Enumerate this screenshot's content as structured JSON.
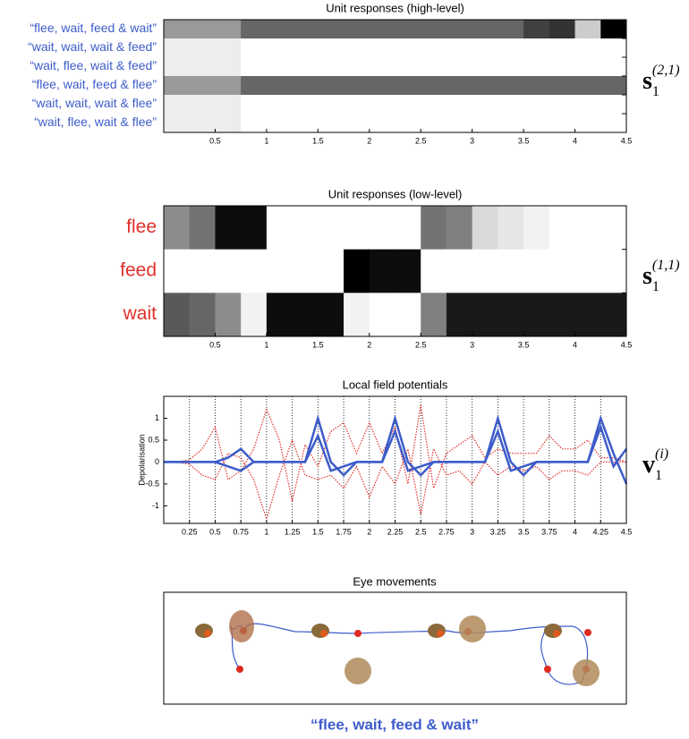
{
  "panels": [
    {
      "type": "heatmap",
      "title": "Unit responses (high-level)",
      "rows": [
        "“flee, wait, feed & wait”",
        "“wait, wait, wait & feed”",
        "“wait, flee, wait & feed”",
        "“flee, wait, feed & flee”",
        "“wait, wait, wait & flee”",
        "“wait, flee, wait & flee”"
      ],
      "label_color": "#3d5cc9",
      "x_edges": [
        0,
        0.25,
        0.5,
        0.75,
        1,
        1.25,
        1.5,
        1.75,
        2,
        2.25,
        2.5,
        2.75,
        3,
        3.25,
        3.5,
        3.75,
        4,
        4.25,
        4.5
      ],
      "values": [
        [
          0.4,
          0.4,
          0.4,
          0.6,
          0.6,
          0.6,
          0.6,
          0.6,
          0.6,
          0.6,
          0.6,
          0.6,
          0.6,
          0.6,
          0.75,
          0.8,
          0.2,
          1
        ],
        [
          0.07,
          0.07,
          0.07,
          0,
          0,
          0,
          0,
          0,
          0,
          0,
          0,
          0,
          0,
          0,
          0,
          0,
          0,
          0
        ],
        [
          0.07,
          0.07,
          0.07,
          0,
          0,
          0,
          0,
          0,
          0,
          0,
          0,
          0,
          0,
          0,
          0,
          0,
          0,
          0
        ],
        [
          0.4,
          0.4,
          0.4,
          0.6,
          0.6,
          0.6,
          0.6,
          0.6,
          0.6,
          0.6,
          0.6,
          0.6,
          0.6,
          0.6,
          0.6,
          0.6,
          0.6,
          0.6
        ],
        [
          0.07,
          0.07,
          0.07,
          0,
          0,
          0,
          0,
          0,
          0,
          0,
          0,
          0,
          0,
          0,
          0,
          0,
          0,
          0
        ],
        [
          0.07,
          0.07,
          0.07,
          0,
          0,
          0,
          0,
          0,
          0,
          0,
          0,
          0,
          0,
          0,
          0,
          0,
          0,
          0
        ]
      ],
      "xlim": [
        0,
        4.5
      ],
      "xticks": [
        0.5,
        1,
        1.5,
        2,
        2.5,
        3,
        3.5,
        4,
        4.5
      ],
      "label": {
        "symbol": "s",
        "sub": "1",
        "sup": "(2,1)"
      }
    },
    {
      "type": "heatmap",
      "title": "Unit responses (low-level)",
      "rows": [
        "flee",
        "feed",
        "wait"
      ],
      "label_color": "#e0302a",
      "x_edges": [
        0,
        0.25,
        0.5,
        0.75,
        1,
        1.25,
        1.5,
        1.75,
        2,
        2.25,
        2.5,
        2.75,
        3,
        3.25,
        3.5,
        3.75,
        4,
        4.25,
        4.5
      ],
      "values": [
        [
          0.45,
          0.55,
          0.95,
          0.95,
          0,
          0,
          0,
          0,
          0,
          0,
          0.55,
          0.5,
          0.15,
          0.1,
          0.05,
          0,
          0,
          0
        ],
        [
          0,
          0,
          0,
          0,
          0,
          0,
          0,
          1,
          0.95,
          0.95,
          0,
          0,
          0,
          0,
          0,
          0,
          0,
          0
        ],
        [
          0.65,
          0.6,
          0.45,
          0.05,
          0.95,
          0.95,
          0.95,
          0.05,
          0,
          0,
          0.5,
          0.9,
          0.9,
          0.9,
          0.9,
          0.9,
          0.9,
          0.9
        ]
      ],
      "xlim": [
        0,
        4.5
      ],
      "xticks": [
        0.5,
        1,
        1.5,
        2,
        2.5,
        3,
        3.5,
        4,
        4.5
      ],
      "label": {
        "symbol": "s",
        "sub": "1",
        "sup": "(1,1)"
      }
    },
    {
      "type": "line",
      "title": "Local field potentials",
      "y_label": "Depolarisation",
      "x": [
        0,
        0.125,
        0.25,
        0.375,
        0.5,
        0.625,
        0.75,
        0.875,
        1,
        1.125,
        1.25,
        1.375,
        1.5,
        1.625,
        1.75,
        1.875,
        2,
        2.125,
        2.25,
        2.375,
        2.5,
        2.625,
        2.75,
        2.875,
        3,
        3.125,
        3.25,
        3.375,
        3.5,
        3.625,
        3.75,
        3.875,
        4,
        4.125,
        4.25,
        4.375,
        4.5
      ],
      "series": [
        {
          "color": "#e0302a",
          "style": "dotted",
          "values": [
            0,
            0,
            0.05,
            0.3,
            0.8,
            -0.4,
            -0.2,
            0.3,
            1.2,
            0.5,
            -0.9,
            0.4,
            -0.1,
            0.7,
            0.9,
            0.2,
            0.9,
            0.2,
            0.8,
            -0.5,
            1.3,
            -0.6,
            0.2,
            0.4,
            0.6,
            0.1,
            0.3,
            0.2,
            0.2,
            0.2,
            0.6,
            0.3,
            0.3,
            0.5,
            0.1,
            0.1,
            0
          ]
        },
        {
          "color": "#e0302a",
          "style": "dotted",
          "values": [
            0,
            0,
            -0.05,
            -0.3,
            -0.4,
            0.2,
            0.1,
            -0.4,
            -1.3,
            -0.3,
            0.5,
            -0.3,
            -0.4,
            -0.3,
            -0.6,
            -0.1,
            -0.8,
            -0.1,
            -0.5,
            0.3,
            -1.2,
            0.3,
            -0.3,
            -0.2,
            -0.5,
            0,
            -0.3,
            -0.1,
            -0.2,
            -0.1,
            -0.4,
            -0.2,
            -0.2,
            -0.3,
            0,
            0,
            0
          ]
        },
        {
          "color": "#3d5cc9",
          "style": "solid",
          "values": [
            0,
            0,
            0,
            0,
            0,
            0.1,
            0.3,
            0,
            0,
            0,
            0,
            0,
            1,
            0,
            -0.3,
            0,
            0,
            0,
            1,
            0,
            -0.3,
            0,
            0,
            0,
            0,
            0,
            1,
            0,
            -0.3,
            0,
            0,
            0,
            0,
            0,
            1,
            0.2,
            -0.5
          ]
        },
        {
          "color": "#3d5cc9",
          "style": "solid",
          "values": [
            0,
            0,
            0,
            0,
            0,
            -0.1,
            -0.2,
            0,
            0,
            0,
            0,
            0,
            0.6,
            -0.2,
            -0.1,
            0,
            0,
            0,
            0.7,
            -0.2,
            -0.1,
            0,
            0,
            0,
            0,
            0,
            0.7,
            -0.2,
            -0.1,
            0,
            0,
            0,
            0,
            0,
            0.8,
            -0.1,
            0.3
          ]
        }
      ],
      "xlim": [
        0,
        4.5
      ],
      "xticks": [
        0.25,
        0.5,
        0.75,
        1,
        1.25,
        1.5,
        1.75,
        2,
        2.25,
        2.5,
        2.75,
        3,
        3.25,
        3.5,
        3.75,
        4,
        4.25,
        4.5
      ],
      "ylim": [
        -1.4,
        1.5
      ],
      "yticks": [
        -1,
        -0.5,
        0,
        0.5,
        1
      ],
      "grid": true,
      "label": {
        "symbol": "v",
        "sub": "1",
        "sup": "(i)"
      }
    }
  ],
  "eye_movements": {
    "title": "Eye movements"
  },
  "caption": "“flee, wait, feed & wait”"
}
